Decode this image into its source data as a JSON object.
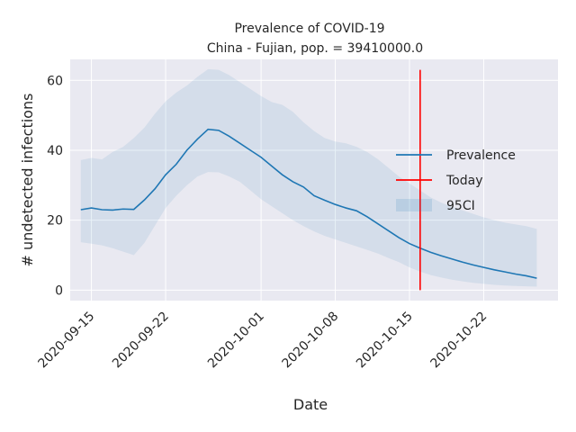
{
  "chart_data": {
    "type": "line",
    "title": "Prevalence of COVID-19",
    "subtitle": "China - Fujian, pop. = 39410000.0",
    "xlabel": "Date",
    "ylabel": "# undetected infections",
    "x_ticks": [
      "2020-09-15",
      "2020-09-22",
      "2020-10-01",
      "2020-10-08",
      "2020-10-15",
      "2020-10-22"
    ],
    "y_ticks": [
      0,
      20,
      40,
      60
    ],
    "ylim": [
      -3,
      66
    ],
    "xlim": [
      "2020-09-13",
      "2020-10-29"
    ],
    "legend": {
      "placement": "right",
      "entries": [
        "Prevalence",
        "Today",
        "95CI"
      ]
    },
    "grid": true,
    "x": [
      "2020-09-14",
      "2020-09-15",
      "2020-09-16",
      "2020-09-17",
      "2020-09-18",
      "2020-09-19",
      "2020-09-20",
      "2020-09-21",
      "2020-09-22",
      "2020-09-23",
      "2020-09-24",
      "2020-09-25",
      "2020-09-26",
      "2020-09-27",
      "2020-09-28",
      "2020-09-29",
      "2020-09-30",
      "2020-10-01",
      "2020-10-02",
      "2020-10-03",
      "2020-10-04",
      "2020-10-05",
      "2020-10-06",
      "2020-10-07",
      "2020-10-08",
      "2020-10-09",
      "2020-10-10",
      "2020-10-11",
      "2020-10-12",
      "2020-10-13",
      "2020-10-14",
      "2020-10-15",
      "2020-10-16",
      "2020-10-17",
      "2020-10-18",
      "2020-10-19",
      "2020-10-20",
      "2020-10-21",
      "2020-10-22",
      "2020-10-23",
      "2020-10-24",
      "2020-10-25",
      "2020-10-26",
      "2020-10-27"
    ],
    "series": [
      {
        "name": "Prevalence",
        "color": "#1f77b4",
        "values": [
          23.0,
          23.5,
          23.0,
          22.9,
          23.2,
          23.1,
          25.8,
          29.0,
          33.0,
          36.0,
          40.0,
          43.2,
          46.0,
          45.7,
          44.0,
          42.0,
          40.0,
          38.0,
          35.5,
          33.0,
          31.0,
          29.5,
          27.0,
          25.7,
          24.5,
          23.5,
          22.7,
          21.0,
          19.0,
          17.0,
          15.0,
          13.3,
          12.0,
          10.8,
          9.8,
          8.9,
          8.0,
          7.2,
          6.5,
          5.8,
          5.2,
          4.6,
          4.1,
          3.4
        ]
      },
      {
        "name": "95CI",
        "color": "#1f77b4",
        "lower": [
          13.7,
          13.3,
          12.8,
          12.0,
          11.0,
          10.0,
          13.5,
          18.5,
          23.5,
          27.0,
          30.0,
          32.5,
          33.8,
          33.7,
          32.5,
          31.0,
          28.5,
          26.0,
          24.0,
          22.0,
          20.0,
          18.3,
          16.8,
          15.5,
          14.5,
          13.5,
          12.5,
          11.5,
          10.5,
          9.2,
          8.0,
          6.5,
          5.3,
          4.3,
          3.6,
          3.0,
          2.5,
          2.1,
          1.8,
          1.5,
          1.3,
          1.2,
          1.1,
          1.0
        ],
        "upper": [
          37.2,
          37.8,
          37.4,
          39.5,
          41.0,
          43.5,
          46.5,
          50.5,
          54.0,
          56.5,
          58.5,
          61.0,
          63.2,
          63.0,
          61.5,
          59.5,
          57.5,
          55.5,
          53.8,
          53.0,
          51.0,
          48.0,
          45.5,
          43.5,
          42.5,
          42.0,
          41.0,
          39.5,
          37.5,
          35.0,
          32.5,
          30.5,
          28.5,
          26.5,
          25.0,
          23.8,
          22.8,
          21.8,
          20.8,
          20.0,
          19.3,
          18.8,
          18.3,
          17.5
        ]
      }
    ],
    "today": {
      "name": "Today",
      "date": "2020-10-16",
      "color": "#ff0000",
      "y_range": [
        0,
        63
      ]
    }
  }
}
